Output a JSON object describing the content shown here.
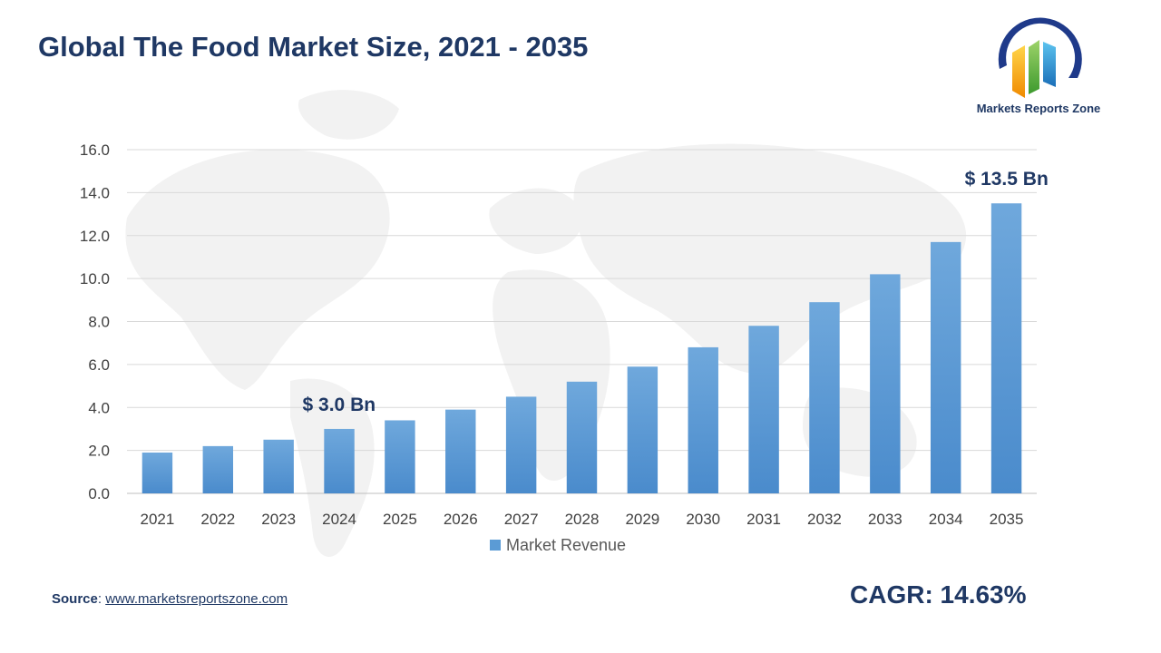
{
  "title": "Global The Food Market Size, 2021 - 2035",
  "logo": {
    "text": "Markets Reports Zone",
    "icon": "bar-chart-globe-logo"
  },
  "source": {
    "label": "Source",
    "separator": ": ",
    "url_text": "www.marketsreportszone.com"
  },
  "cagr": "CAGR: 14.63%",
  "annotations": [
    {
      "text": "$ 3.0 Bn",
      "year": "2024"
    },
    {
      "text": "$ 13.5 Bn",
      "year": "2035"
    }
  ],
  "colors": {
    "title": "#1f3864",
    "bar_top": "#6fa8dc",
    "bar_bottom": "#4a8bcc",
    "grid": "#d9d9d9",
    "axis_text": "#404040"
  },
  "chart_data": {
    "type": "bar",
    "categories": [
      "2021",
      "2022",
      "2023",
      "2024",
      "2025",
      "2026",
      "2027",
      "2028",
      "2029",
      "2030",
      "2031",
      "2032",
      "2033",
      "2034",
      "2035"
    ],
    "series": [
      {
        "name": "Market Revenue",
        "values": [
          1.9,
          2.2,
          2.5,
          3.0,
          3.4,
          3.9,
          4.5,
          5.2,
          5.9,
          6.8,
          7.8,
          8.9,
          10.2,
          11.7,
          13.5
        ]
      }
    ],
    "yticks": [
      "0.0",
      "2.0",
      "4.0",
      "6.0",
      "8.0",
      "10.0",
      "12.0",
      "14.0",
      "16.0"
    ],
    "ylim": [
      0,
      16
    ],
    "grid": true,
    "legend_position": "bottom"
  }
}
